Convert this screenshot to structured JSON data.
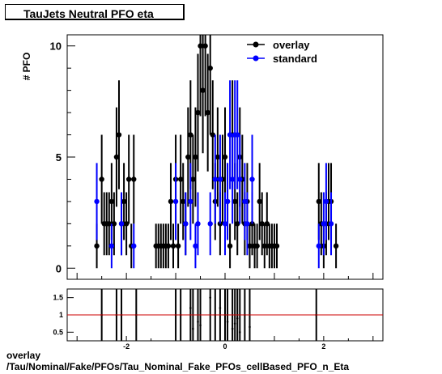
{
  "title": "TauJets Neutral PFO eta",
  "caption": {
    "line1": "overlay",
    "line2": "/Tau/Nominal/Fake/PFOs/Tau_Nominal_Fake_PFOs_cellBased_PFO_n_Eta"
  },
  "colors": {
    "overlay": "#000000",
    "standard": "#0000ff",
    "ratio_line": "#cc0000"
  },
  "chart_data": [
    {
      "type": "scatter",
      "ylabel": "# PFO",
      "xlim": [
        -3.2,
        3.2
      ],
      "ylim": [
        -0.5,
        10.5
      ],
      "y_ticks": [
        "0",
        "5",
        "10"
      ],
      "legend": {
        "placement": "top-right",
        "entries": [
          "overlay",
          "standard"
        ]
      },
      "series": [
        {
          "name": "overlay",
          "marker": "filled-circle",
          "points": [
            [
              -2.6,
              1
            ],
            [
              -2.5,
              4
            ],
            [
              -2.45,
              2
            ],
            [
              -2.4,
              2
            ],
            [
              -2.35,
              2
            ],
            [
              -2.3,
              3
            ],
            [
              -2.25,
              2
            ],
            [
              -2.2,
              5
            ],
            [
              -2.15,
              6
            ],
            [
              -2.1,
              2
            ],
            [
              -2.05,
              3
            ],
            [
              -2.0,
              2
            ],
            [
              -1.95,
              4
            ],
            [
              -1.9,
              1
            ],
            [
              -1.85,
              4
            ],
            [
              -1.4,
              1
            ],
            [
              -1.35,
              1
            ],
            [
              -1.3,
              1
            ],
            [
              -1.25,
              1
            ],
            [
              -1.2,
              1
            ],
            [
              -1.15,
              1
            ],
            [
              -1.1,
              3
            ],
            [
              -1.05,
              1
            ],
            [
              -1.0,
              4
            ],
            [
              -0.95,
              1
            ],
            [
              -0.9,
              4
            ],
            [
              -0.85,
              3
            ],
            [
              -0.8,
              2
            ],
            [
              -0.75,
              5
            ],
            [
              -0.7,
              6
            ],
            [
              -0.65,
              4
            ],
            [
              -0.6,
              5
            ],
            [
              -0.55,
              7
            ],
            [
              -0.5,
              10
            ],
            [
              -0.45,
              8
            ],
            [
              -0.4,
              10
            ],
            [
              -0.35,
              7
            ],
            [
              -0.3,
              9
            ],
            [
              -0.25,
              6
            ],
            [
              -0.2,
              3
            ],
            [
              -0.15,
              5
            ],
            [
              -0.1,
              2
            ],
            [
              -0.05,
              4
            ],
            [
              0.0,
              5
            ],
            [
              0.05,
              3
            ],
            [
              0.1,
              1
            ],
            [
              0.15,
              6
            ],
            [
              0.2,
              3
            ],
            [
              0.25,
              2
            ],
            [
              0.3,
              5
            ],
            [
              0.35,
              4
            ],
            [
              0.4,
              2
            ],
            [
              0.45,
              3
            ],
            [
              0.5,
              1
            ],
            [
              0.55,
              2
            ],
            [
              0.6,
              1
            ],
            [
              0.65,
              1
            ],
            [
              0.7,
              3
            ],
            [
              0.75,
              2
            ],
            [
              0.8,
              1
            ],
            [
              0.85,
              2
            ],
            [
              0.9,
              1
            ],
            [
              0.95,
              1
            ],
            [
              1.0,
              1
            ],
            [
              1.05,
              1
            ],
            [
              1.9,
              3
            ],
            [
              1.95,
              2
            ],
            [
              2.0,
              1
            ],
            [
              2.05,
              2
            ],
            [
              2.1,
              3
            ],
            [
              2.15,
              3
            ],
            [
              2.25,
              1
            ]
          ]
        },
        {
          "name": "standard",
          "marker": "filled-circle",
          "points": [
            [
              -2.6,
              3
            ],
            [
              -2.3,
              1
            ],
            [
              -2.1,
              2
            ],
            [
              -1.85,
              1
            ],
            [
              -1.0,
              3
            ],
            [
              -0.8,
              2
            ],
            [
              -0.7,
              3
            ],
            [
              -0.6,
              1
            ],
            [
              -0.55,
              2
            ],
            [
              -0.3,
              2
            ],
            [
              -0.2,
              4
            ],
            [
              -0.1,
              4
            ],
            [
              0.0,
              2
            ],
            [
              0.05,
              3
            ],
            [
              0.1,
              6
            ],
            [
              0.15,
              4
            ],
            [
              0.2,
              6
            ],
            [
              0.25,
              6
            ],
            [
              0.3,
              4
            ],
            [
              0.4,
              3
            ],
            [
              0.45,
              2
            ],
            [
              0.55,
              4
            ],
            [
              1.9,
              1
            ],
            [
              2.0,
              2
            ],
            [
              2.05,
              3
            ],
            [
              2.15,
              2
            ]
          ]
        }
      ]
    },
    {
      "type": "scatter",
      "xlim": [
        -3.2,
        3.2
      ],
      "ylim": [
        0.25,
        1.75
      ],
      "y_ticks": [
        "0.5",
        "1",
        "1.5"
      ],
      "x_ticks": [
        "-2",
        "0",
        "2"
      ],
      "reference_line": 1,
      "series": [
        {
          "name": "ratio",
          "points": [
            [
              -2.5,
              1.0
            ],
            [
              -2.2,
              1.0
            ],
            [
              -2.1,
              1.0
            ],
            [
              -1.8,
              1.0
            ],
            [
              -1.0,
              1.0
            ],
            [
              -0.9,
              1.0
            ],
            [
              -0.7,
              1.2
            ],
            [
              -0.65,
              0.6
            ],
            [
              -0.55,
              0.8
            ],
            [
              -0.5,
              0.7
            ],
            [
              -0.3,
              1.5
            ],
            [
              -0.2,
              1.0
            ],
            [
              -0.1,
              1.2
            ],
            [
              0.0,
              1.0
            ],
            [
              0.05,
              0.8
            ],
            [
              0.15,
              0.6
            ],
            [
              0.2,
              0.75
            ],
            [
              0.25,
              0.9
            ],
            [
              0.3,
              0.5
            ],
            [
              0.4,
              1.0
            ],
            [
              0.5,
              0.65
            ],
            [
              1.85,
              1.0
            ]
          ]
        }
      ]
    }
  ]
}
